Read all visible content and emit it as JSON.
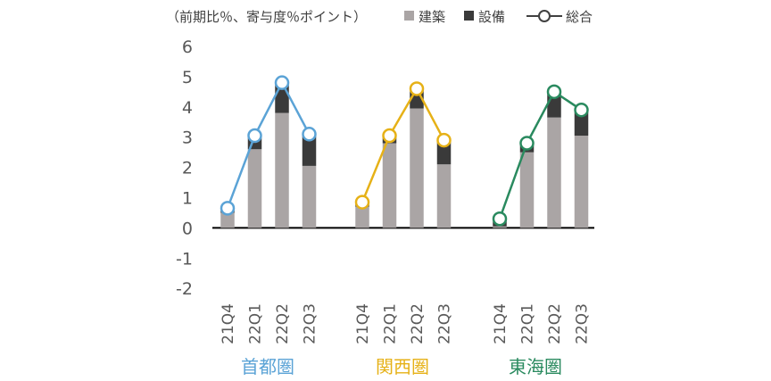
{
  "chart_data": {
    "type": "bar",
    "stacked": true,
    "unit_label": "（前期比％、寄与度％ポイント）",
    "ylim": [
      -2,
      6
    ],
    "yticks": [
      "6",
      "5",
      "4",
      "3",
      "2",
      "1",
      "0",
      "-1",
      "-2"
    ],
    "groups": [
      {
        "name": "首都圏",
        "color": "#5BA3D6",
        "categories": [
          "21Q4",
          "22Q1",
          "22Q2",
          "22Q3"
        ],
        "construction": [
          0.5,
          2.6,
          3.8,
          2.05
        ],
        "equipment": [
          0.15,
          0.45,
          0.95,
          1.05
        ],
        "total": [
          0.65,
          3.05,
          4.8,
          3.1
        ]
      },
      {
        "name": "関西圏",
        "color": "#E6B117",
        "categories": [
          "21Q4",
          "22Q1",
          "22Q2",
          "22Q3"
        ],
        "construction": [
          0.7,
          2.8,
          3.95,
          2.1
        ],
        "equipment": [
          0.1,
          0.25,
          0.65,
          0.75
        ],
        "total": [
          0.85,
          3.05,
          4.6,
          2.9
        ]
      },
      {
        "name": "東海圏",
        "color": "#2A8A5F",
        "categories": [
          "21Q4",
          "22Q1",
          "22Q2",
          "22Q3"
        ],
        "construction": [
          0.05,
          2.5,
          3.65,
          3.05
        ],
        "equipment": [
          0.2,
          0.3,
          0.85,
          0.85
        ],
        "total": [
          0.3,
          2.8,
          4.5,
          3.9
        ]
      }
    ],
    "legend": [
      {
        "label": "建築",
        "kind": "square",
        "color": "#AAA5A5"
      },
      {
        "label": "設備",
        "kind": "square",
        "color": "#3A3A3A"
      },
      {
        "label": "総合",
        "kind": "line-marker",
        "color": "#404040"
      }
    ],
    "colors": {
      "construction": "#AAA5A5",
      "equipment": "#3A3A3A",
      "zero_line": "#000000"
    }
  }
}
